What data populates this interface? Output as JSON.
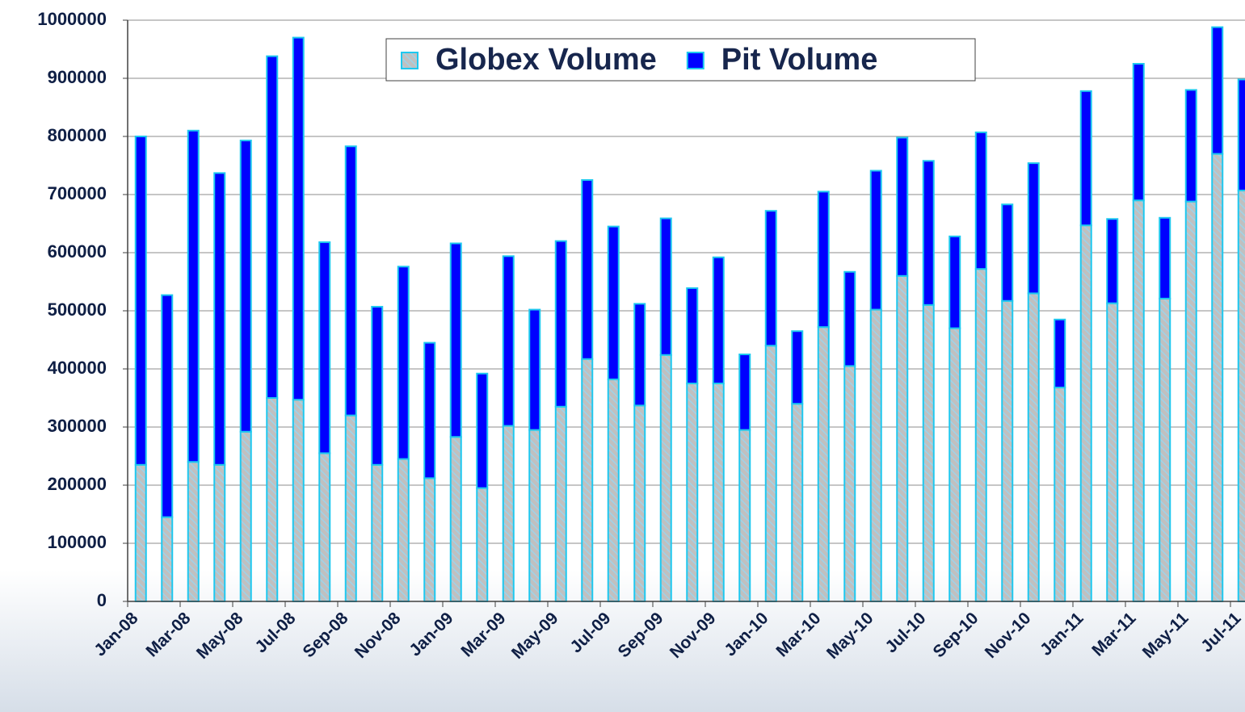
{
  "chart_data": {
    "type": "stacked-bar",
    "categories": [
      "Jan-08",
      null,
      "Mar-08",
      null,
      "May-08",
      null,
      "Jul-08",
      null,
      "Sep-08",
      null,
      "Nov-08",
      null,
      "Jan-09",
      null,
      "Mar-09",
      null,
      "May-09",
      null,
      "Jul-09",
      null,
      "Sep-09",
      null,
      "Nov-09",
      null,
      "Jan-10",
      null,
      "Mar-10",
      null,
      "May-10",
      null,
      "Jul-10",
      null,
      "Sep-10",
      null,
      "Nov-10",
      null,
      "Jan-11",
      null,
      "Mar-11",
      null,
      "May-11",
      null,
      "Jul-11"
    ],
    "series": [
      {
        "name": "Globex Volume",
        "color": "#c0c0c0",
        "values": [
          235000,
          145000,
          240000,
          235000,
          292000,
          350000,
          347000,
          255000,
          320000,
          235000,
          245000,
          212000,
          283000,
          195000,
          302000,
          295000,
          335000,
          417000,
          382000,
          337000,
          424000,
          375000,
          375000,
          295000,
          440000,
          340000,
          472000,
          405000,
          502000,
          560000,
          510000,
          470000,
          572000,
          517000,
          530000,
          368000,
          647000,
          513000,
          690000,
          521000,
          688000,
          770000,
          707000
        ]
      },
      {
        "name": "Pit Volume",
        "color": "#0000ff",
        "values": [
          565000,
          382000,
          570000,
          502000,
          501000,
          588000,
          623000,
          363000,
          463000,
          272000,
          331000,
          233000,
          333000,
          197000,
          292000,
          207000,
          285000,
          308000,
          263000,
          175000,
          235000,
          164000,
          217000,
          130000,
          232000,
          125000,
          233000,
          162000,
          239000,
          238000,
          248000,
          158000,
          235000,
          166000,
          224000,
          117000,
          231000,
          145000,
          235000,
          139000,
          192000,
          218000,
          191000
        ]
      }
    ],
    "ylim": [
      0,
      1000000
    ],
    "yticks": [
      0,
      100000,
      200000,
      300000,
      400000,
      500000,
      600000,
      700000,
      800000,
      900000,
      1000000
    ],
    "grid": true
  }
}
